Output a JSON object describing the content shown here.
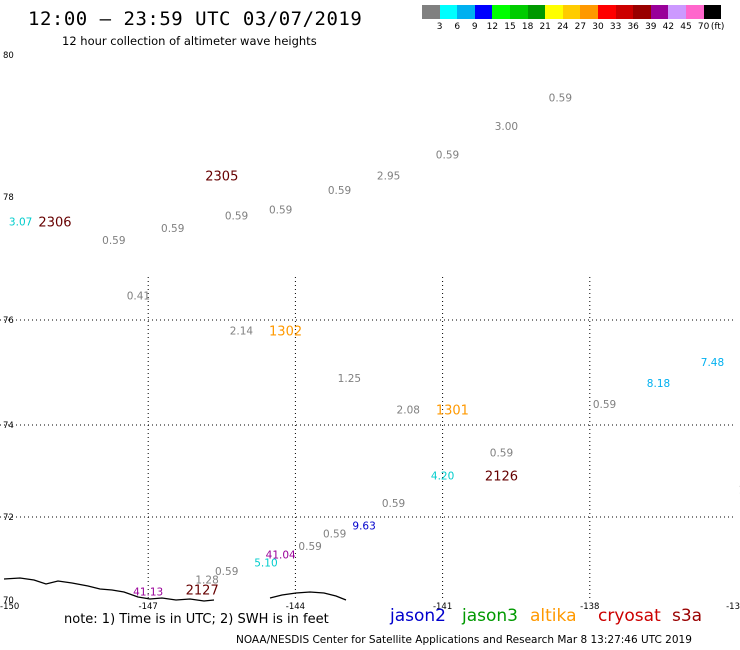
{
  "header": {
    "title": "12:00 – 23:59 UTC 03/07/2019",
    "subtitle": "12 hour collection of altimeter wave heights"
  },
  "scale": {
    "unit": "(ft)",
    "colors": [
      "#808080",
      "#00ffff",
      "#00b0f0",
      "#0000ff",
      "#00ff00",
      "#00cc00",
      "#009900",
      "#ffff00",
      "#ffcc00",
      "#ff9900",
      "#ff0000",
      "#cc0000",
      "#990000",
      "#990099",
      "#cc99ff",
      "#ff66cc",
      "#000000"
    ],
    "labels": [
      "3",
      "6",
      "9",
      "12",
      "15",
      "18",
      "21",
      "24",
      "27",
      "30",
      "33",
      "36",
      "39",
      "42",
      "45",
      "70"
    ]
  },
  "map": {
    "lat_labels": [
      {
        "lat": 80,
        "text": "80"
      },
      {
        "lat": 78,
        "text": "78"
      },
      {
        "lat": 76,
        "text": "76"
      },
      {
        "lat": 74,
        "text": "74"
      },
      {
        "lat": 72,
        "text": "72"
      },
      {
        "lat": 70,
        "text": "70"
      }
    ],
    "lon_labels": [
      {
        "lon": -150,
        "text": "-150"
      },
      {
        "lon": -147,
        "text": "-147"
      },
      {
        "lon": -144,
        "text": "-144"
      },
      {
        "lon": -141,
        "text": "-141"
      },
      {
        "lon": -138,
        "text": "-138"
      },
      {
        "lon": -135,
        "text": "-13"
      }
    ],
    "observations": [
      {
        "lon": -149.6,
        "lat": 77.6,
        "text": "3.07",
        "color": "#00cccc"
      },
      {
        "lon": -147.7,
        "lat": 77.3,
        "text": "0.59",
        "color": "#808080"
      },
      {
        "lon": -146.5,
        "lat": 77.5,
        "text": "0.59",
        "color": "#808080"
      },
      {
        "lon": -145.2,
        "lat": 77.7,
        "text": "0.59",
        "color": "#808080"
      },
      {
        "lon": -144.3,
        "lat": 77.8,
        "text": "0.59",
        "color": "#808080"
      },
      {
        "lon": -143.1,
        "lat": 78.1,
        "text": "0.59",
        "color": "#808080"
      },
      {
        "lon": -142.1,
        "lat": 78.3,
        "text": "2.95",
        "color": "#808080"
      },
      {
        "lon": -140.9,
        "lat": 78.6,
        "text": "0.59",
        "color": "#808080"
      },
      {
        "lon": -139.7,
        "lat": 79.0,
        "text": "3.00",
        "color": "#808080"
      },
      {
        "lon": -138.6,
        "lat": 79.4,
        "text": "0.59",
        "color": "#808080"
      },
      {
        "lon": -147.2,
        "lat": 76.4,
        "text": "0.41",
        "color": "#808080"
      },
      {
        "lon": -145.1,
        "lat": 75.8,
        "text": "2.14",
        "color": "#808080"
      },
      {
        "lon": -142.9,
        "lat": 74.9,
        "text": "1.25",
        "color": "#808080"
      },
      {
        "lon": -141.7,
        "lat": 74.3,
        "text": "2.08",
        "color": "#808080"
      },
      {
        "lon": -139.8,
        "lat": 73.4,
        "text": "0.59",
        "color": "#808080"
      },
      {
        "lon": -141.0,
        "lat": 72.9,
        "text": "4.20",
        "color": "#00cccc"
      },
      {
        "lon": -137.7,
        "lat": 74.4,
        "text": "0.59",
        "color": "#808080"
      },
      {
        "lon": -136.6,
        "lat": 74.8,
        "text": "8.18",
        "color": "#00b0f0"
      },
      {
        "lon": -135.5,
        "lat": 75.2,
        "text": "7.48",
        "color": "#00b0f0"
      },
      {
        "lon": -142.0,
        "lat": 72.3,
        "text": "0.59",
        "color": "#808080"
      },
      {
        "lon": -142.6,
        "lat": 71.8,
        "text": "9.63",
        "color": "#0000cc"
      },
      {
        "lon": -143.2,
        "lat": 71.6,
        "text": "0.59",
        "color": "#808080"
      },
      {
        "lon": -143.7,
        "lat": 71.3,
        "text": "0.59",
        "color": "#808080"
      },
      {
        "lon": -144.3,
        "lat": 71.1,
        "text": "41.04",
        "color": "#990099"
      },
      {
        "lon": -144.6,
        "lat": 70.9,
        "text": "5.10",
        "color": "#00cccc"
      },
      {
        "lon": -145.4,
        "lat": 70.7,
        "text": "0.59",
        "color": "#808080"
      },
      {
        "lon": -145.8,
        "lat": 70.5,
        "text": "1.28",
        "color": "#808080"
      },
      {
        "lon": -147.0,
        "lat": 70.2,
        "text": "41.13",
        "color": "#990099"
      },
      {
        "lon": -134.9,
        "lat": 72.6,
        "text": "1",
        "color": "#808080"
      }
    ],
    "pass_labels": [
      {
        "lon": -148.9,
        "lat": 77.6,
        "text": "2306",
        "color": "#660000"
      },
      {
        "lon": -145.5,
        "lat": 78.3,
        "text": "2305",
        "color": "#660000"
      },
      {
        "lon": -144.2,
        "lat": 75.8,
        "text": "1302",
        "color": "#ff9900"
      },
      {
        "lon": -140.8,
        "lat": 74.3,
        "text": "1301",
        "color": "#ff9900"
      },
      {
        "lon": -139.8,
        "lat": 72.9,
        "text": "2126",
        "color": "#660000"
      },
      {
        "lon": -145.9,
        "lat": 70.25,
        "text": "2127",
        "color": "#660000"
      }
    ]
  },
  "note": "note: 1) Time is in UTC; 2) SWH is in feet",
  "legend": [
    {
      "name": "jason2",
      "color": "#0000cc"
    },
    {
      "name": "jason3",
      "color": "#009900"
    },
    {
      "name": "altika",
      "color": "#ff9900"
    },
    {
      "name": "cryosat",
      "color": "#cc0000"
    },
    {
      "name": "s3a",
      "color": "#990000"
    }
  ],
  "footer": "NOAA/NESDIS Center for Satellite Applications and Research    Mar  8 13:27:46 UTC 2019"
}
